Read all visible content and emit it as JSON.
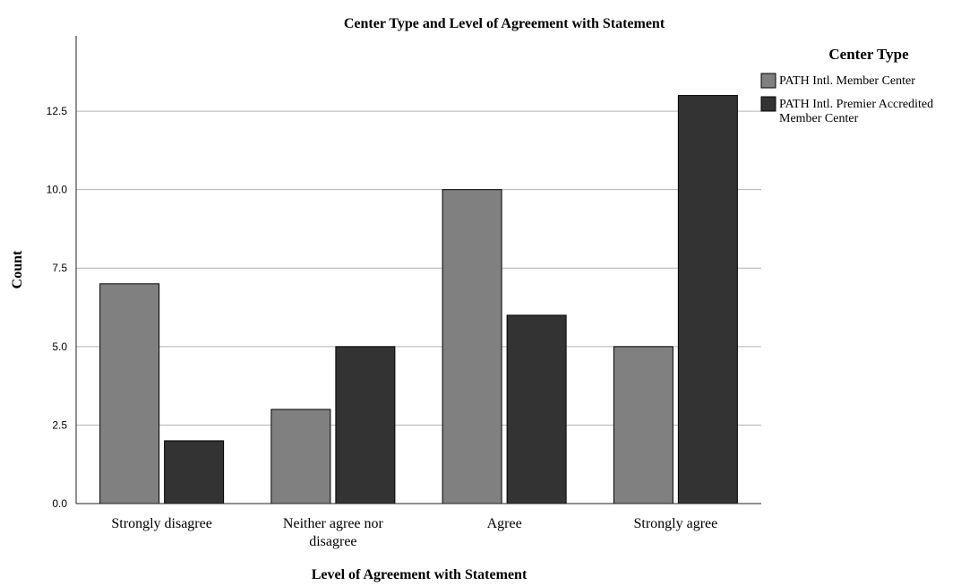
{
  "chart_data": {
    "type": "bar",
    "title": "Center Type and Level of Agreement with Statement",
    "xlabel": "Level of Agreement with Statement",
    "ylabel": "Count",
    "categories": [
      [
        "Strongly disagree"
      ],
      [
        "Neither agree nor",
        "disagree"
      ],
      [
        "Agree"
      ],
      [
        "Strongly agree"
      ]
    ],
    "series": [
      {
        "name": [
          "PATH Intl. Member Center"
        ],
        "color": "#808080",
        "values": [
          7,
          3,
          10,
          5
        ]
      },
      {
        "name": [
          "PATH Intl. Premier Accredited",
          "Member Center"
        ],
        "color": "#333333",
        "values": [
          2,
          5,
          6,
          13
        ]
      }
    ],
    "yticks": [
      "0.0",
      "2.5",
      "5.0",
      "7.5",
      "10.0",
      "12.5"
    ],
    "ytick_values": [
      0,
      2.5,
      5,
      7.5,
      10,
      12.5
    ],
    "ylim": [
      0,
      14.9
    ],
    "grid": "horizontal",
    "legend": {
      "title": "Center Type",
      "placement": "right"
    }
  }
}
